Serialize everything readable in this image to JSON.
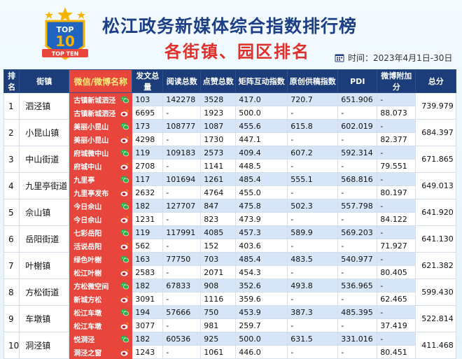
{
  "header": {
    "logo_text_top": "TOP",
    "logo_text_num": "10",
    "logo_text_banner": "TOP TEN",
    "title": "松江政务新媒体综合指数排行榜",
    "subtitle": "各街镇、园区排名",
    "period": "时间：2023年4月1日-30日",
    "calendar_icon": "calendar-icon"
  },
  "columns": [
    "排名",
    "街镇",
    "微信/微博名称",
    "发文总量",
    "阅读总数",
    "点赞总数",
    "矩阵互动指数",
    "原创供稿指数",
    "PDI",
    "微博附加分",
    "总分"
  ],
  "icons": {
    "wechat": "wechat-icon",
    "weibo": "weibo-icon",
    "wechat_color": "#2bb24c",
    "weibo_color": "#e6162d"
  },
  "rows": [
    {
      "rank": "1",
      "town": "泗泾镇",
      "total": "739.979",
      "accounts": [
        {
          "name": "古镇新城泗泾",
          "posts": "103",
          "reads": "142278",
          "likes": "3528",
          "matrix": "417.0",
          "original": "720.7",
          "pdi": "651.906",
          "bonus": "-"
        },
        {
          "name": "古镇新城泗泾",
          "posts": "6695",
          "reads": "-",
          "likes": "1923",
          "matrix": "500.0",
          "original": "-",
          "pdi": "-",
          "bonus": "88.073"
        }
      ]
    },
    {
      "rank": "2",
      "town": "小昆山镇",
      "total": "684.397",
      "accounts": [
        {
          "name": "美丽小昆山",
          "posts": "173",
          "reads": "108777",
          "likes": "1087",
          "matrix": "455.6",
          "original": "615.8",
          "pdi": "602.019",
          "bonus": "-"
        },
        {
          "name": "美丽小昆山",
          "posts": "4298",
          "reads": "-",
          "likes": "1730",
          "matrix": "447.1",
          "original": "-",
          "pdi": "-",
          "bonus": "82.377"
        }
      ]
    },
    {
      "rank": "3",
      "town": "中山街道",
      "total": "671.865",
      "accounts": [
        {
          "name": "府城微中山",
          "posts": "119",
          "reads": "109183",
          "likes": "2573",
          "matrix": "409.4",
          "original": "607.2",
          "pdi": "592.314",
          "bonus": "-"
        },
        {
          "name": "府城中山",
          "posts": "2708",
          "reads": "-",
          "likes": "1141",
          "matrix": "448.5",
          "original": "-",
          "pdi": "-",
          "bonus": "79.551"
        }
      ]
    },
    {
      "rank": "4",
      "town": "九里亭街道",
      "total": "649.013",
      "accounts": [
        {
          "name": "九里亭",
          "posts": "117",
          "reads": "101694",
          "likes": "1261",
          "matrix": "485.4",
          "original": "555.1",
          "pdi": "568.816",
          "bonus": "-"
        },
        {
          "name": "九里亭发布",
          "posts": "2632",
          "reads": "-",
          "likes": "4764",
          "matrix": "455.0",
          "original": "-",
          "pdi": "-",
          "bonus": "80.197"
        }
      ]
    },
    {
      "rank": "5",
      "town": "佘山镇",
      "total": "641.920",
      "accounts": [
        {
          "name": "今日佘山",
          "posts": "182",
          "reads": "127707",
          "likes": "847",
          "matrix": "475.8",
          "original": "502.3",
          "pdi": "557.798",
          "bonus": "-"
        },
        {
          "name": "今日佘山",
          "posts": "1231",
          "reads": "-",
          "likes": "823",
          "matrix": "473.9",
          "original": "-",
          "pdi": "-",
          "bonus": "84.122"
        }
      ]
    },
    {
      "rank": "6",
      "town": "岳阳街道",
      "total": "641.130",
      "accounts": [
        {
          "name": "七彩岳阳",
          "posts": "119",
          "reads": "117991",
          "likes": "4085",
          "matrix": "457.3",
          "original": "589.9",
          "pdi": "569.203",
          "bonus": "-"
        },
        {
          "name": "活说岳阳",
          "posts": "562",
          "reads": "-",
          "likes": "152",
          "matrix": "403.6",
          "original": "-",
          "pdi": "-",
          "bonus": "71.927"
        }
      ]
    },
    {
      "rank": "7",
      "town": "叶榭镇",
      "total": "621.382",
      "accounts": [
        {
          "name": "绿色叶榭",
          "posts": "163",
          "reads": "77750",
          "likes": "703",
          "matrix": "485.4",
          "original": "483.5",
          "pdi": "540.977",
          "bonus": "-"
        },
        {
          "name": "松江叶榭",
          "posts": "2583",
          "reads": "-",
          "likes": "2071",
          "matrix": "454.3",
          "original": "-",
          "pdi": "-",
          "bonus": "80.405"
        }
      ]
    },
    {
      "rank": "8",
      "town": "方松街道",
      "total": "599.430",
      "accounts": [
        {
          "name": "方松微空间",
          "posts": "182",
          "reads": "67833",
          "likes": "908",
          "matrix": "352.6",
          "original": "493.8",
          "pdi": "536.965",
          "bonus": "-"
        },
        {
          "name": "新城方松",
          "posts": "3091",
          "reads": "-",
          "likes": "1116",
          "matrix": "359.6",
          "original": "-",
          "pdi": "-",
          "bonus": "62.465"
        }
      ]
    },
    {
      "rank": "9",
      "town": "车墩镇",
      "total": "522.814",
      "accounts": [
        {
          "name": "松江车墩",
          "posts": "194",
          "reads": "57666",
          "likes": "750",
          "matrix": "453.9",
          "original": "387.3",
          "pdi": "485.395",
          "bonus": "-"
        },
        {
          "name": "松江车墩",
          "posts": "3077",
          "reads": "-",
          "likes": "981",
          "matrix": "259.7",
          "original": "-",
          "pdi": "-",
          "bonus": "37.419"
        }
      ]
    },
    {
      "rank": "10",
      "town": "洞泾镇",
      "total": "411.468",
      "accounts": [
        {
          "name": "悦洞泾",
          "posts": "182",
          "reads": "60536",
          "likes": "925",
          "matrix": "500.0",
          "original": "631.5",
          "pdi": "331.016",
          "bonus": "-"
        },
        {
          "name": "洞泾之窗",
          "posts": "1243",
          "reads": "-",
          "likes": "1061",
          "matrix": "446.0",
          "original": "-",
          "pdi": "-",
          "bonus": "80.451"
        }
      ]
    }
  ]
}
